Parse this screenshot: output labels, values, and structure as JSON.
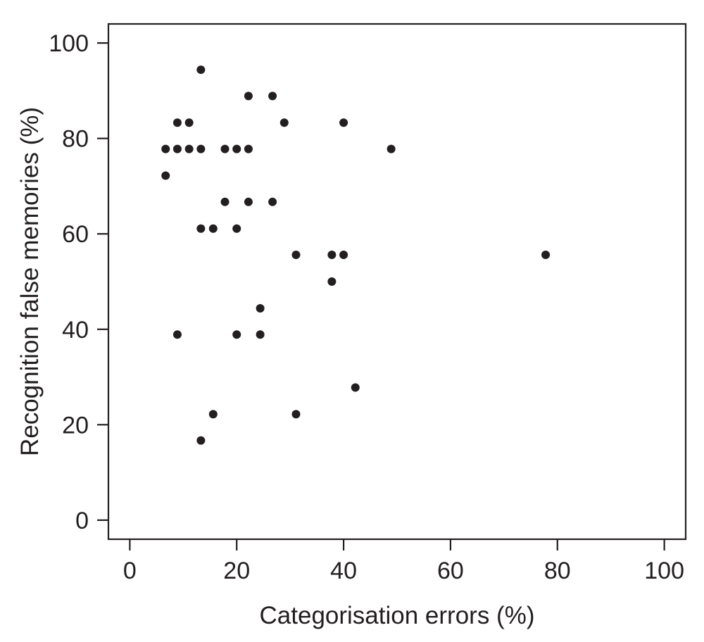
{
  "chart_data": {
    "type": "scatter",
    "title": "",
    "xlabel": "Categorisation errors (%)",
    "ylabel": "Recognition false memories (%)",
    "xlim": [
      -4,
      104
    ],
    "ylim": [
      -4,
      104
    ],
    "xticks": [
      0,
      20,
      40,
      60,
      80,
      100
    ],
    "yticks": [
      0,
      20,
      40,
      60,
      80,
      100
    ],
    "xtick_labels": [
      "0",
      "20",
      "40",
      "60",
      "80",
      "100"
    ],
    "ytick_labels": [
      "0",
      "20",
      "40",
      "60",
      "80",
      "100"
    ],
    "grid": false,
    "marker_color": "#231f20",
    "points": [
      {
        "x": 13.3,
        "y": 94.4
      },
      {
        "x": 22.2,
        "y": 88.9
      },
      {
        "x": 26.7,
        "y": 88.9
      },
      {
        "x": 8.9,
        "y": 83.3
      },
      {
        "x": 11.1,
        "y": 83.3
      },
      {
        "x": 28.9,
        "y": 83.3
      },
      {
        "x": 40.0,
        "y": 83.3
      },
      {
        "x": 6.7,
        "y": 77.8
      },
      {
        "x": 8.9,
        "y": 77.8
      },
      {
        "x": 11.1,
        "y": 77.8
      },
      {
        "x": 13.3,
        "y": 77.8
      },
      {
        "x": 17.8,
        "y": 77.8
      },
      {
        "x": 20.0,
        "y": 77.8
      },
      {
        "x": 22.2,
        "y": 77.8
      },
      {
        "x": 48.9,
        "y": 77.8
      },
      {
        "x": 6.7,
        "y": 72.2
      },
      {
        "x": 17.8,
        "y": 66.7
      },
      {
        "x": 22.2,
        "y": 66.7
      },
      {
        "x": 26.7,
        "y": 66.7
      },
      {
        "x": 13.3,
        "y": 61.1
      },
      {
        "x": 15.6,
        "y": 61.1
      },
      {
        "x": 20.0,
        "y": 61.1
      },
      {
        "x": 31.1,
        "y": 55.6
      },
      {
        "x": 37.8,
        "y": 55.6
      },
      {
        "x": 40.0,
        "y": 55.6
      },
      {
        "x": 77.8,
        "y": 55.6
      },
      {
        "x": 37.8,
        "y": 50.0
      },
      {
        "x": 24.4,
        "y": 44.4
      },
      {
        "x": 8.9,
        "y": 38.9
      },
      {
        "x": 20.0,
        "y": 38.9
      },
      {
        "x": 24.4,
        "y": 38.9
      },
      {
        "x": 42.2,
        "y": 27.8
      },
      {
        "x": 15.6,
        "y": 22.2
      },
      {
        "x": 31.1,
        "y": 22.2
      },
      {
        "x": 13.3,
        "y": 16.7
      }
    ]
  }
}
